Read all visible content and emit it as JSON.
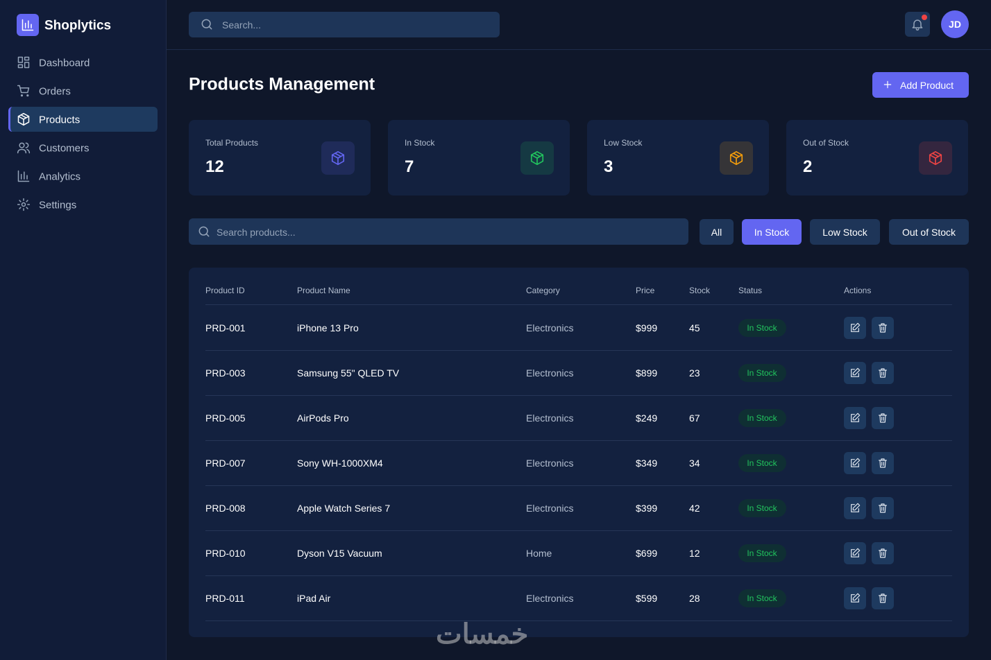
{
  "brand": "Shoplytics",
  "nav": [
    {
      "label": "Dashboard",
      "active": false
    },
    {
      "label": "Orders",
      "active": false
    },
    {
      "label": "Products",
      "active": true
    },
    {
      "label": "Customers",
      "active": false
    },
    {
      "label": "Analytics",
      "active": false
    },
    {
      "label": "Settings",
      "active": false
    }
  ],
  "search_placeholder": "Search...",
  "avatar": "JD",
  "page_title": "Products Management",
  "add_button": "Add Product",
  "stats": [
    {
      "label": "Total Products",
      "value": 12,
      "color": "#6366f1"
    },
    {
      "label": "In Stock",
      "value": 7,
      "color": "#22c55e"
    },
    {
      "label": "Low Stock",
      "value": 3,
      "color": "#f59e0b"
    },
    {
      "label": "Out of Stock",
      "value": 2,
      "color": "#ef4444"
    }
  ],
  "product_search_placeholder": "Search products...",
  "filters": [
    {
      "label": "All",
      "active": false
    },
    {
      "label": "In Stock",
      "active": true
    },
    {
      "label": "Low Stock",
      "active": false
    },
    {
      "label": "Out of Stock",
      "active": false
    }
  ],
  "table": {
    "columns": [
      "Product ID",
      "Product Name",
      "Category",
      "Price",
      "Stock",
      "Status",
      "Actions"
    ],
    "rows": [
      [
        "PRD-001",
        "iPhone 13 Pro",
        "Electronics",
        "$999",
        45,
        "In Stock"
      ],
      [
        "PRD-003",
        "Samsung 55\" QLED TV",
        "Electronics",
        "$899",
        23,
        "In Stock"
      ],
      [
        "PRD-005",
        "AirPods Pro",
        "Electronics",
        "$249",
        67,
        "In Stock"
      ],
      [
        "PRD-007",
        "Sony WH-1000XM4",
        "Electronics",
        "$349",
        34,
        "In Stock"
      ],
      [
        "PRD-008",
        "Apple Watch Series 7",
        "Electronics",
        "$399",
        42,
        "In Stock"
      ],
      [
        "PRD-010",
        "Dyson V15 Vacuum",
        "Home",
        "$699",
        12,
        "In Stock"
      ],
      [
        "PRD-011",
        "iPad Air",
        "Electronics",
        "$599",
        28,
        "In Stock"
      ]
    ]
  },
  "watermark": "خمسات"
}
